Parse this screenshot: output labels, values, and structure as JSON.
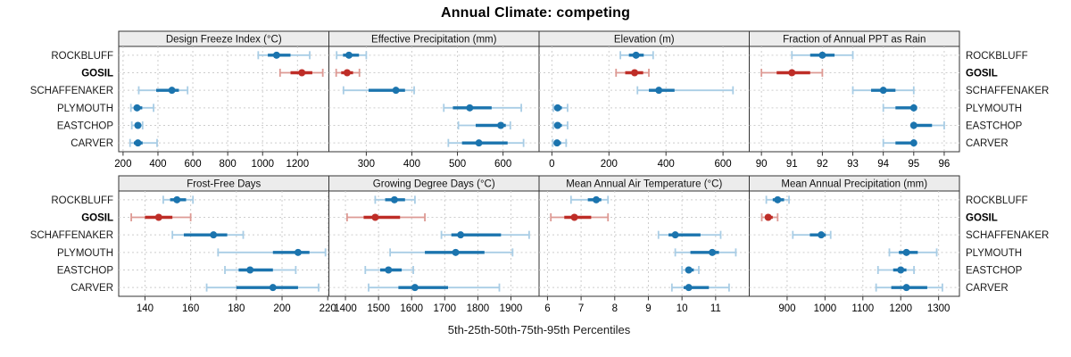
{
  "chart_data": {
    "type": "dotplot",
    "title": "Annual Climate: competing",
    "caption": "5th-25th-50th-75th-95th Percentiles",
    "percentiles": [
      5,
      25,
      50,
      75,
      95
    ],
    "categories": [
      "ROCKBLUFF",
      "GOSIL",
      "SCHAFFENAKER",
      "PLYMOUTH",
      "EASTCHOP",
      "CARVER"
    ],
    "highlight_category": "GOSIL",
    "legend_position": "none",
    "grid": "dashed",
    "layout": {
      "rows": 2,
      "cols": 4
    },
    "colors": {
      "series_dark": "#1b74ae",
      "series_light": "#a9cde5",
      "highlight_dark": "#be2d27",
      "highlight_light": "#dd9a94",
      "grid": "#cdcdcd",
      "strip_bg": "#ececec",
      "border": "#333333",
      "tick": "#333333",
      "label": "#1a1a1a"
    },
    "panels": [
      {
        "title": "Design Freeze Index (°C)",
        "xlim": [
          175,
          1380
        ],
        "ticks": [
          200,
          400,
          600,
          800,
          1000,
          1200
        ],
        "series": [
          {
            "name": "ROCKBLUFF",
            "values": [
              975,
              1030,
              1080,
              1160,
              1270
            ]
          },
          {
            "name": "GOSIL",
            "values": [
              1100,
              1160,
              1225,
              1285,
              1345
            ]
          },
          {
            "name": "SCHAFFENAKER",
            "values": [
              290,
              390,
              480,
              520,
              570
            ]
          },
          {
            "name": "PLYMOUTH",
            "values": [
              245,
              262,
              280,
              310,
              375
            ]
          },
          {
            "name": "EASTCHOP",
            "values": [
              250,
              268,
              285,
              300,
              312
            ]
          },
          {
            "name": "CARVER",
            "values": [
              240,
              262,
              285,
              312,
              395
            ]
          }
        ]
      },
      {
        "title": "Effective Precipitation (mm)",
        "xlim": [
          218,
          679
        ],
        "ticks": [
          300,
          400,
          500,
          600
        ],
        "series": [
          {
            "name": "ROCKBLUFF",
            "values": [
              235,
              249,
              262,
              284,
              300
            ]
          },
          {
            "name": "GOSIL",
            "values": [
              234,
              245,
              258,
              271,
              285
            ]
          },
          {
            "name": "SCHAFFENAKER",
            "values": [
              250,
              305,
              365,
              385,
              405
            ]
          },
          {
            "name": "PLYMOUTH",
            "values": [
              470,
              490,
              527,
              575,
              640
            ]
          },
          {
            "name": "EASTCHOP",
            "values": [
              502,
              540,
              595,
              606,
              616
            ]
          },
          {
            "name": "CARVER",
            "values": [
              480,
              510,
              547,
              610,
              645
            ]
          }
        ]
      },
      {
        "title": "Elevation (m)",
        "xlim": [
          -45,
          692
        ],
        "ticks": [
          0,
          200,
          400,
          600
        ],
        "series": [
          {
            "name": "ROCKBLUFF",
            "values": [
              240,
              270,
              295,
              322,
              355
            ]
          },
          {
            "name": "GOSIL",
            "values": [
              225,
              257,
              290,
              320,
              340
            ]
          },
          {
            "name": "SCHAFFENAKER",
            "values": [
              300,
              340,
              375,
              430,
              635
            ]
          },
          {
            "name": "PLYMOUTH",
            "values": [
              5,
              12,
              20,
              35,
              55
            ]
          },
          {
            "name": "EASTCHOP",
            "values": [
              5,
              12,
              20,
              35,
              55
            ]
          },
          {
            "name": "CARVER",
            "values": [
              3,
              10,
              18,
              32,
              50
            ]
          }
        ]
      },
      {
        "title": "Fraction of Annual PPT as Rain",
        "xlim": [
          89.6,
          96.5
        ],
        "ticks": [
          90,
          91,
          92,
          93,
          94,
          95,
          96
        ],
        "series": [
          {
            "name": "ROCKBLUFF",
            "values": [
              91,
              91.6,
              92,
              92.4,
              93
            ]
          },
          {
            "name": "GOSIL",
            "values": [
              90,
              90.5,
              91,
              91.6,
              92
            ]
          },
          {
            "name": "SCHAFFENAKER",
            "values": [
              93,
              93.6,
              94,
              94.4,
              95
            ]
          },
          {
            "name": "PLYMOUTH",
            "values": [
              94,
              94.4,
              95,
              95,
              95
            ]
          },
          {
            "name": "EASTCHOP",
            "values": [
              95,
              95,
              95,
              95.6,
              96
            ]
          },
          {
            "name": "CARVER",
            "values": [
              94,
              94.4,
              95,
              95,
              95
            ]
          }
        ]
      },
      {
        "title": "Frost-Free Days",
        "xlim": [
          128.5,
          220.5
        ],
        "ticks": [
          140,
          160,
          180,
          200,
          220
        ],
        "series": [
          {
            "name": "ROCKBLUFF",
            "values": [
              148,
              151,
              154,
              158,
              161
            ]
          },
          {
            "name": "GOSIL",
            "values": [
              134,
              140,
              146,
              152,
              160
            ]
          },
          {
            "name": "SCHAFFENAKER",
            "values": [
              152,
              157,
              170,
              176,
              183
            ]
          },
          {
            "name": "PLYMOUTH",
            "values": [
              172,
              196,
              207,
              212,
              219
            ]
          },
          {
            "name": "EASTCHOP",
            "values": [
              175,
              181,
              186,
              196,
              206
            ]
          },
          {
            "name": "CARVER",
            "values": [
              167,
              180,
              196,
              207,
              216
            ]
          }
        ]
      },
      {
        "title": "Growing Degree Days (°C)",
        "xlim": [
          1350,
          1985
        ],
        "ticks": [
          1400,
          1500,
          1600,
          1700,
          1800,
          1900
        ],
        "series": [
          {
            "name": "ROCKBLUFF",
            "values": [
              1490,
              1520,
              1548,
              1580,
              1610
            ]
          },
          {
            "name": "GOSIL",
            "values": [
              1405,
              1455,
              1490,
              1565,
              1640
            ]
          },
          {
            "name": "SCHAFFENAKER",
            "values": [
              1690,
              1720,
              1748,
              1870,
              1955
            ]
          },
          {
            "name": "PLYMOUTH",
            "values": [
              1535,
              1640,
              1733,
              1820,
              1905
            ]
          },
          {
            "name": "EASTCHOP",
            "values": [
              1460,
              1505,
              1530,
              1570,
              1605
            ]
          },
          {
            "name": "CARVER",
            "values": [
              1470,
              1560,
              1610,
              1710,
              1865
            ]
          }
        ]
      },
      {
        "title": "Mean Annual Air Temperature (°C)",
        "xlim": [
          5.75,
          12.0
        ],
        "ticks": [
          6,
          7,
          8,
          9,
          10,
          11
        ],
        "series": [
          {
            "name": "ROCKBLUFF",
            "values": [
              6.7,
              7.2,
              7.45,
              7.6,
              7.8
            ]
          },
          {
            "name": "GOSIL",
            "values": [
              6.1,
              6.5,
              6.8,
              7.3,
              7.8
            ]
          },
          {
            "name": "SCHAFFENAKER",
            "values": [
              9.3,
              9.6,
              9.8,
              10.55,
              11.15
            ]
          },
          {
            "name": "PLYMOUTH",
            "values": [
              9.8,
              10.25,
              10.9,
              11.1,
              11.6
            ]
          },
          {
            "name": "EASTCHOP",
            "values": [
              10.0,
              10.1,
              10.2,
              10.35,
              10.5
            ]
          },
          {
            "name": "CARVER",
            "values": [
              9.7,
              10.05,
              10.2,
              10.8,
              11.4
            ]
          }
        ]
      },
      {
        "title": "Mean Annual Precipitation (mm)",
        "xlim": [
          800,
          1355
        ],
        "ticks": [
          900,
          1000,
          1100,
          1200,
          1300
        ],
        "series": [
          {
            "name": "ROCKBLUFF",
            "values": [
              845,
              862,
              875,
              892,
              905
            ]
          },
          {
            "name": "GOSIL",
            "values": [
              833,
              842,
              850,
              862,
              875
            ]
          },
          {
            "name": "SCHAFFENAKER",
            "values": [
              915,
              960,
              990,
              1002,
              1015
            ]
          },
          {
            "name": "PLYMOUTH",
            "values": [
              1170,
              1195,
              1215,
              1245,
              1295
            ]
          },
          {
            "name": "EASTCHOP",
            "values": [
              1140,
              1180,
              1200,
              1215,
              1235
            ]
          },
          {
            "name": "CARVER",
            "values": [
              1135,
              1175,
              1215,
              1270,
              1310
            ]
          }
        ]
      }
    ]
  }
}
